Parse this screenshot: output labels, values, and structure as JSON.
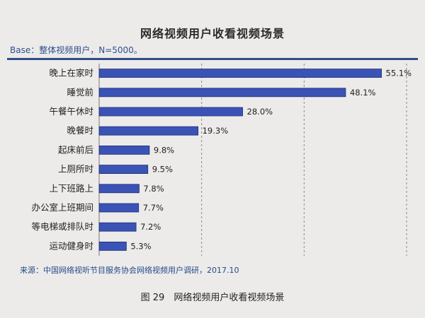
{
  "header": {
    "title": "网络视频用户收看视频场景",
    "base_note": "Base：整体视频用户，N=5000。"
  },
  "footer": {
    "source": "来源：中国网络视听节目服务协会网络视频用户调研，2017.10",
    "caption": "图 29　网络视频用户收看视频场景"
  },
  "colors": {
    "bar": "#3b53b5",
    "bar_edge": "#1f2f7a",
    "accent": "#2f4c8c"
  },
  "chart_data": {
    "type": "bar",
    "orientation": "horizontal",
    "title": "网络视频用户收看视频场景",
    "categories": [
      "晚上在家时",
      "睡觉前",
      "午餐午休时",
      "晚餐时",
      "起床前后",
      "上厕所时",
      "上下班路上",
      "办公室上班期间",
      "等电梯或排队时",
      "运动健身时"
    ],
    "values": [
      55.1,
      48.1,
      28.0,
      19.3,
      9.8,
      9.5,
      7.8,
      7.7,
      7.2,
      5.3
    ],
    "value_labels": [
      "55.1%",
      "48.1%",
      "28.0%",
      "19.3%",
      "9.8%",
      "9.5%",
      "7.8%",
      "7.7%",
      "7.2%",
      "5.3%"
    ],
    "xlim": [
      0,
      60
    ],
    "grid": true,
    "xlabel": "",
    "ylabel": ""
  }
}
